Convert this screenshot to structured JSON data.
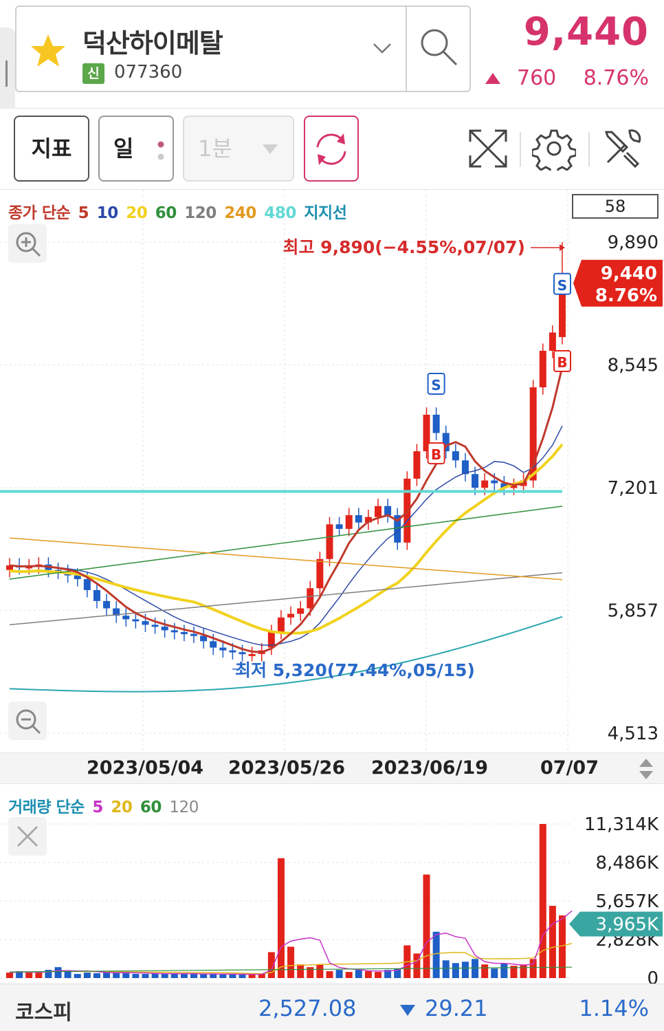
{
  "stock": {
    "name": "덕산하이메탈",
    "badge": "신",
    "code": "077360",
    "price": "9,440",
    "change": "760",
    "change_pct": "8.76%",
    "up_color": "#d6336c"
  },
  "toolbar": {
    "indicator_label": "지표",
    "period_label": "일",
    "minute_label": "1분",
    "icons": [
      "refresh-icon",
      "expand-icon",
      "gear-icon",
      "tools-icon"
    ]
  },
  "main_legend": {
    "prefix": "종가 단순",
    "periods": [
      {
        "label": "5",
        "color": "#c0392b"
      },
      {
        "label": "10",
        "color": "#2c49a8"
      },
      {
        "label": "20",
        "color": "#f1d21d"
      },
      {
        "label": "60",
        "color": "#2f8f3a"
      },
      {
        "label": "120",
        "color": "#7f7f7f"
      },
      {
        "label": "240",
        "color": "#e39a22"
      },
      {
        "label": "480",
        "color": "#62d9d4"
      }
    ],
    "support_label": "지지선",
    "support_color": "#1d8fb0",
    "view_count": "58"
  },
  "price_axis": [
    "9,890",
    "8,545",
    "7,201",
    "5,857",
    "4,513"
  ],
  "current_price_tag": {
    "price": "9,440",
    "pct": "8.76%"
  },
  "annotations": {
    "high": "최고 9,890(−4.55%,07/07)",
    "low": "최저 5,320(77.44%,05/15)"
  },
  "date_axis": [
    "2023/05/04",
    "2023/05/26",
    "2023/06/19",
    "07/07"
  ],
  "volume_legend": {
    "prefix": "거래량 단순",
    "periods": [
      {
        "label": "5",
        "color": "#c832c8"
      },
      {
        "label": "20",
        "color": "#e0b81e"
      },
      {
        "label": "60",
        "color": "#2f8f3a"
      },
      {
        "label": "120",
        "color": "#888888"
      }
    ]
  },
  "volume_axis": [
    "11,314K",
    "8,486K",
    "5,657K",
    "2,828K",
    "0"
  ],
  "current_volume_tag": "3,965K",
  "footer": {
    "index_name": "코스피",
    "index_value": "2,527.08",
    "index_change": "29.21",
    "index_pct": "1.14%",
    "down_color": "#2a6ac9"
  },
  "chart_data": {
    "type": "candlestick",
    "ylim": [
      4513,
      9890
    ],
    "high": 9890,
    "low": 5320,
    "last_close": 9440,
    "volume_ylim": [
      0,
      11314
    ],
    "series": [
      {
        "name": "5",
        "kind": "moving-average"
      },
      {
        "name": "10",
        "kind": "moving-average"
      },
      {
        "name": "20",
        "kind": "moving-average"
      },
      {
        "name": "60",
        "kind": "moving-average"
      },
      {
        "name": "120",
        "kind": "moving-average"
      },
      {
        "name": "240",
        "kind": "moving-average"
      },
      {
        "name": "480",
        "kind": "moving-average"
      },
      {
        "name": "지지선",
        "kind": "support-line",
        "value": 7160
      }
    ]
  }
}
